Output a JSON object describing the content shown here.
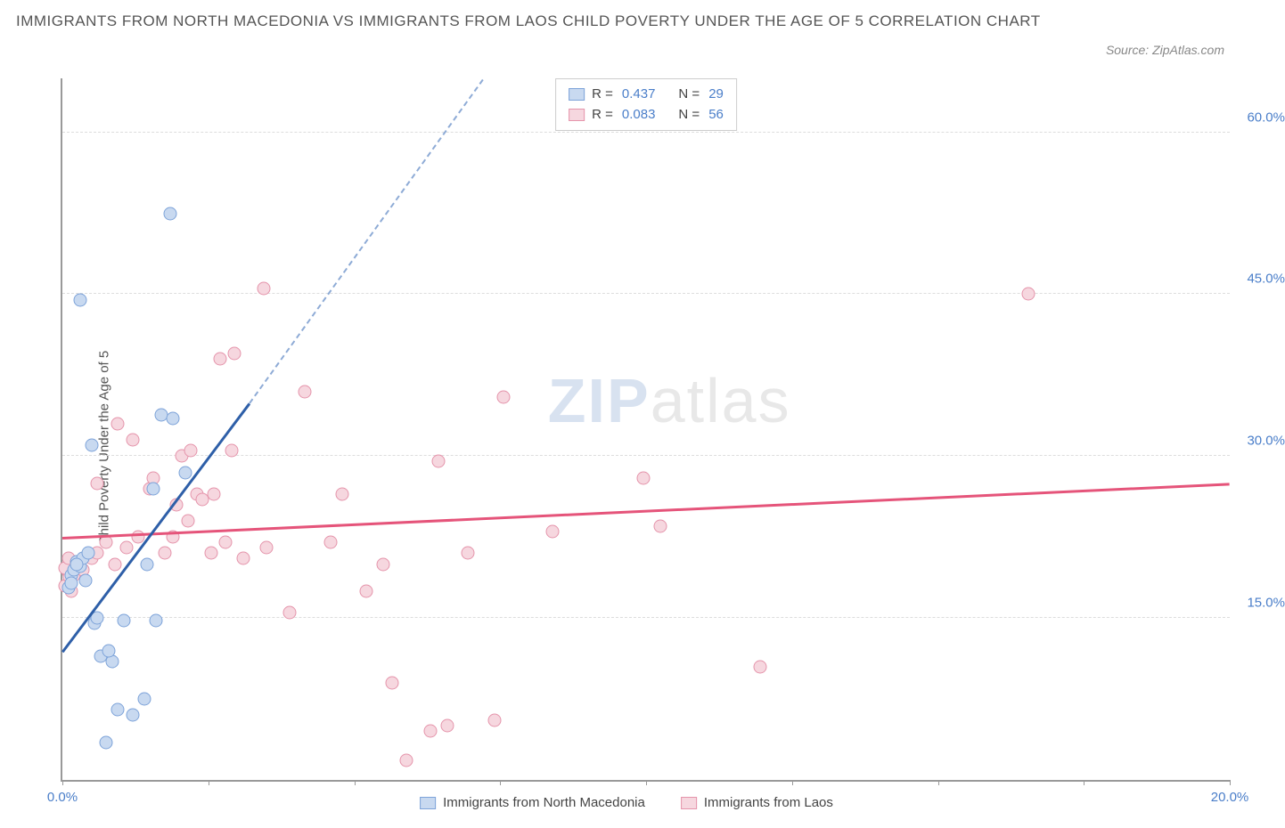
{
  "title": "IMMIGRANTS FROM NORTH MACEDONIA VS IMMIGRANTS FROM LAOS CHILD POVERTY UNDER THE AGE OF 5 CORRELATION CHART",
  "source": "Source: ZipAtlas.com",
  "y_axis_label": "Child Poverty Under the Age of 5",
  "chart": {
    "type": "scatter",
    "xlim": [
      0,
      20
    ],
    "ylim": [
      0,
      65
    ],
    "x_ticks": [
      0,
      2.5,
      5,
      7.5,
      10,
      12.5,
      15,
      17.5,
      20
    ],
    "x_tick_labels": {
      "0": "0.0%",
      "20": "20.0%"
    },
    "y_ticks": [
      15,
      30,
      45,
      60
    ],
    "y_tick_labels": {
      "15": "15.0%",
      "30": "30.0%",
      "45": "45.0%",
      "60": "60.0%"
    },
    "grid_color": "#dddddd",
    "axis_color": "#999999",
    "background_color": "#ffffff"
  },
  "series": {
    "s1": {
      "label": "Immigrants from North Macedonia",
      "fill": "#c8d9f0",
      "stroke": "#7da3d9",
      "line_color": "#2e5fa8",
      "dash_color": "#8eabd6",
      "R": "0.437",
      "N": "29",
      "trend": {
        "x1": 0,
        "y1": 12,
        "x2": 3.2,
        "y2": 35
      },
      "trend_dash": {
        "x1": 3.2,
        "y1": 35,
        "x2": 7.2,
        "y2": 65
      },
      "points": [
        [
          0.1,
          17.8
        ],
        [
          0.15,
          19
        ],
        [
          0.2,
          19.5
        ],
        [
          0.25,
          20.2
        ],
        [
          0.15,
          18.2
        ],
        [
          0.3,
          19.8
        ],
        [
          0.35,
          20.5
        ],
        [
          0.45,
          21
        ],
        [
          0.25,
          20
        ],
        [
          0.4,
          18.5
        ],
        [
          0.55,
          14.5
        ],
        [
          0.6,
          15
        ],
        [
          0.65,
          11.5
        ],
        [
          0.85,
          11
        ],
        [
          0.95,
          6.5
        ],
        [
          1.2,
          6
        ],
        [
          1.4,
          7.5
        ],
        [
          0.75,
          3.5
        ],
        [
          0.8,
          12
        ],
        [
          1.05,
          14.8
        ],
        [
          1.6,
          14.8
        ],
        [
          0.5,
          31
        ],
        [
          0.3,
          44.5
        ],
        [
          1.85,
          52.5
        ],
        [
          1.7,
          33.8
        ],
        [
          1.9,
          33.5
        ],
        [
          1.55,
          27
        ],
        [
          2.1,
          28.5
        ],
        [
          1.45,
          20
        ]
      ]
    },
    "s2": {
      "label": "Immigrants from Laos",
      "fill": "#f6d7df",
      "stroke": "#e594ab",
      "line_color": "#e5547a",
      "R": "0.083",
      "N": "56",
      "trend": {
        "x1": 0,
        "y1": 22.5,
        "x2": 20,
        "y2": 27.5
      },
      "points": [
        [
          0.05,
          18
        ],
        [
          0.1,
          19.2
        ],
        [
          0.12,
          18.8
        ],
        [
          0.05,
          19.6
        ],
        [
          0.1,
          20.5
        ],
        [
          0.15,
          17.5
        ],
        [
          0.2,
          19
        ],
        [
          0.25,
          20.2
        ],
        [
          0.35,
          19.5
        ],
        [
          0.5,
          20.5
        ],
        [
          0.6,
          21
        ],
        [
          0.75,
          22
        ],
        [
          0.9,
          20
        ],
        [
          1.1,
          21.5
        ],
        [
          1.3,
          22.5
        ],
        [
          1.5,
          27
        ],
        [
          1.55,
          28
        ],
        [
          1.75,
          21
        ],
        [
          1.9,
          22.5
        ],
        [
          2.05,
          30
        ],
        [
          2.2,
          30.5
        ],
        [
          2.3,
          26.5
        ],
        [
          2.4,
          26
        ],
        [
          2.6,
          26.5
        ],
        [
          2.55,
          21
        ],
        [
          2.8,
          22
        ],
        [
          2.9,
          30.5
        ],
        [
          3.1,
          20.5
        ],
        [
          3.5,
          21.5
        ],
        [
          2.7,
          39
        ],
        [
          2.95,
          39.5
        ],
        [
          3.45,
          45.5
        ],
        [
          3.9,
          15.5
        ],
        [
          4.15,
          36
        ],
        [
          4.6,
          22
        ],
        [
          4.8,
          26.5
        ],
        [
          5.2,
          17.5
        ],
        [
          5.5,
          20
        ],
        [
          5.65,
          9
        ],
        [
          5.9,
          1.8
        ],
        [
          6.3,
          4.5
        ],
        [
          6.6,
          5
        ],
        [
          6.45,
          29.5
        ],
        [
          6.95,
          21
        ],
        [
          7.4,
          5.5
        ],
        [
          7.55,
          35.5
        ],
        [
          8.4,
          23
        ],
        [
          9.95,
          28
        ],
        [
          10.25,
          23.5
        ],
        [
          11.95,
          10.5
        ],
        [
          16.55,
          45
        ],
        [
          0.95,
          33
        ],
        [
          1.2,
          31.5
        ],
        [
          1.95,
          25.5
        ],
        [
          2.15,
          24
        ],
        [
          0.6,
          27.5
        ]
      ]
    }
  },
  "legend_box": {
    "rows": [
      {
        "swatch": "s1",
        "r_label": "R =",
        "r_val": "0.437",
        "n_label": "N =",
        "n_val": "29"
      },
      {
        "swatch": "s2",
        "r_label": "R =",
        "r_val": "0.083",
        "n_label": "N =",
        "n_val": "56"
      }
    ]
  },
  "watermark": {
    "part1": "ZIP",
    "part2": "atlas"
  }
}
